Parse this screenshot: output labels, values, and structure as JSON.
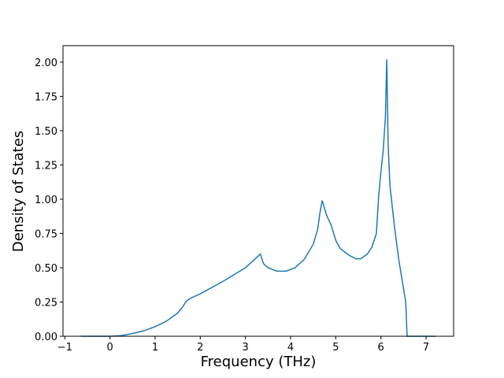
{
  "chart_data": {
    "type": "line",
    "x_label": "Frequency (THz)",
    "y_label": "Density of States",
    "x": [
      -0.65,
      0,
      0.25,
      0.5,
      0.75,
      1.0,
      1.25,
      1.5,
      1.6,
      1.7,
      1.8,
      2.0,
      2.5,
      3.0,
      3.2,
      3.33,
      3.4,
      3.5,
      3.7,
      3.9,
      4.1,
      4.3,
      4.5,
      4.6,
      4.65,
      4.7,
      4.8,
      4.9,
      5.0,
      5.1,
      5.3,
      5.45,
      5.55,
      5.7,
      5.8,
      5.9,
      5.95,
      6.0,
      6.05,
      6.1,
      6.13,
      6.16,
      6.2,
      6.3,
      6.4,
      6.5,
      6.55,
      6.58,
      7.21
    ],
    "series": [
      {
        "name": "DOS",
        "color": "#1f77b4",
        "values": [
          0,
          0,
          0.005,
          0.02,
          0.04,
          0.07,
          0.11,
          0.17,
          0.21,
          0.26,
          0.28,
          0.31,
          0.4,
          0.5,
          0.56,
          0.6,
          0.53,
          0.5,
          0.475,
          0.475,
          0.5,
          0.56,
          0.67,
          0.78,
          0.9,
          0.99,
          0.88,
          0.81,
          0.7,
          0.64,
          0.59,
          0.565,
          0.565,
          0.6,
          0.65,
          0.75,
          1.02,
          1.2,
          1.35,
          1.6,
          2.02,
          1.4,
          1.1,
          0.8,
          0.55,
          0.35,
          0.25,
          0,
          0
        ]
      }
    ],
    "xlim": [
      -1.04,
      7.61
    ],
    "ylim": [
      0,
      2.12
    ],
    "xticks": [
      {
        "value": -1,
        "label": "−1"
      },
      0,
      1,
      2,
      3,
      4,
      5,
      6,
      7
    ],
    "yticks": [
      {
        "value": 0,
        "label": "0.00"
      },
      {
        "value": 0.25,
        "label": "0.25"
      },
      {
        "value": 0.5,
        "label": "0.50"
      },
      {
        "value": 0.75,
        "label": "0.75"
      },
      {
        "value": 1.0,
        "label": "1.00"
      },
      {
        "value": 1.25,
        "label": "1.25"
      },
      {
        "value": 1.5,
        "label": "1.50"
      },
      {
        "value": 1.75,
        "label": "1.75"
      },
      {
        "value": 2.0,
        "label": "2.00"
      }
    ]
  }
}
